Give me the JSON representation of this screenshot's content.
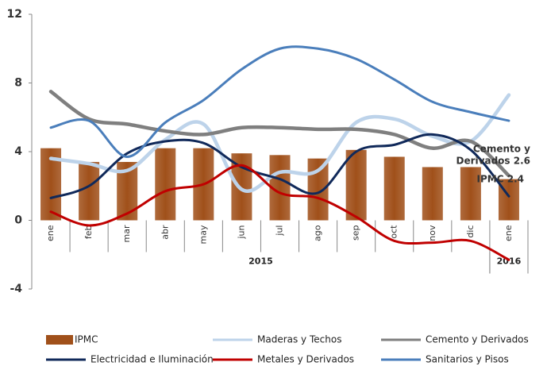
{
  "chart_data": {
    "type": "bar-line",
    "category_groups": [
      {
        "name": "2015",
        "categories": [
          "ene",
          "feb",
          "mar",
          "abr",
          "may",
          "jun",
          "jul",
          "ago",
          "sep",
          "oct",
          "nov",
          "dic"
        ]
      },
      {
        "name": "2016",
        "categories": [
          "ene"
        ]
      }
    ],
    "ylim": [
      -4,
      12
    ],
    "yticks": [
      -4,
      0,
      4,
      8,
      12
    ],
    "series": [
      {
        "name": "IPMC",
        "type": "bar",
        "color": "#a0501a",
        "values": [
          4.2,
          3.4,
          3.4,
          4.2,
          4.2,
          3.9,
          3.8,
          3.6,
          4.1,
          3.7,
          3.1,
          3.1,
          2.4
        ]
      },
      {
        "name": "Maderas y Techos",
        "type": "line",
        "color": "#bdd3ea",
        "values": [
          3.6,
          3.3,
          2.9,
          4.7,
          5.6,
          1.8,
          2.8,
          2.9,
          5.7,
          5.9,
          4.9,
          4.6,
          7.3
        ]
      },
      {
        "name": "Cemento y Derivados",
        "type": "line",
        "color": "#7f7f7f",
        "values": [
          7.5,
          5.9,
          5.6,
          5.2,
          5.0,
          5.4,
          5.4,
          5.3,
          5.3,
          5.0,
          4.2,
          4.6,
          2.6
        ]
      },
      {
        "name": "Electricidad e Iluminación",
        "type": "line",
        "color": "#10295a",
        "values": [
          1.3,
          2.0,
          3.9,
          4.6,
          4.5,
          3.1,
          2.4,
          1.6,
          4.0,
          4.4,
          5.0,
          4.1,
          1.4
        ]
      },
      {
        "name": "Metales y Derivados",
        "type": "line",
        "color": "#c00000",
        "values": [
          0.5,
          -0.3,
          0.4,
          1.7,
          2.1,
          3.2,
          1.6,
          1.3,
          0.2,
          -1.2,
          -1.3,
          -1.2,
          -2.3
        ]
      },
      {
        "name": "Sanitarios y Pisos",
        "type": "line",
        "color": "#4a7ebb",
        "values": [
          5.4,
          5.8,
          3.7,
          5.7,
          7.0,
          8.8,
          10.0,
          10.0,
          9.4,
          8.2,
          6.9,
          6.3,
          5.8
        ]
      }
    ],
    "annotations": [
      "Cemento y",
      "Derivados 2.6",
      "IPMC 2.4"
    ]
  }
}
